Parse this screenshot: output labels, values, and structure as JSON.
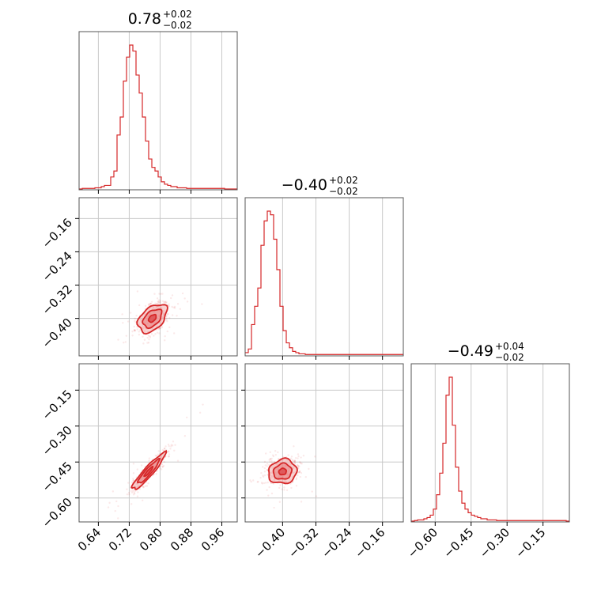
{
  "colors": {
    "series": "#d62728",
    "grid": "#c8c8c8",
    "frame": "#555555"
  },
  "chart_data": {
    "type": "corner",
    "parameters": [
      {
        "median": "0.78",
        "upper": "+0.02",
        "lower": "−0.02"
      },
      {
        "median": "−0.40",
        "upper": "+0.02",
        "lower": "−0.02"
      },
      {
        "median": "−0.49",
        "upper": "+0.04",
        "lower": "−0.02"
      }
    ],
    "ranges": [
      [
        0.59,
        1.0
      ],
      [
        -0.49,
        -0.11
      ],
      [
        -0.7,
        -0.04
      ]
    ],
    "ticks": [
      [
        0.64,
        0.72,
        0.8,
        0.88,
        0.96
      ],
      [
        -0.4,
        -0.32,
        -0.24,
        -0.16
      ],
      [
        -0.6,
        -0.45,
        -0.3,
        -0.15
      ]
    ],
    "tick_labels": [
      [
        "0.64",
        "0.72",
        "0.80",
        "0.88",
        "0.96"
      ],
      [
        "−0.40",
        "−0.32",
        "−0.24",
        "−0.16"
      ],
      [
        "−0.60",
        "−0.45",
        "−0.30",
        "−0.15"
      ]
    ],
    "grid": true,
    "histograms": [
      {
        "param": 0,
        "edges_start": 0.59,
        "bin": 0.0082,
        "counts": [
          0,
          0.5,
          0.5,
          0.5,
          0.5,
          1,
          1,
          2,
          3,
          3,
          10,
          15,
          45,
          60,
          90,
          110,
          120,
          115,
          95,
          80,
          60,
          40,
          25,
          18,
          15,
          10,
          6,
          4,
          3,
          2,
          2,
          1,
          1,
          1,
          0.5,
          0.5,
          0.5,
          0.5,
          0.5,
          0.5,
          0.5,
          0.5,
          0.5,
          0.5,
          0.5,
          0.5,
          0,
          0,
          0,
          0
        ]
      },
      {
        "param": 1,
        "edges_start": -0.49,
        "bin": 0.0076,
        "counts": [
          2,
          5,
          25,
          40,
          55,
          90,
          110,
          118,
          115,
          95,
          70,
          40,
          20,
          10,
          6,
          3,
          2,
          1,
          1,
          0.5,
          0.5,
          0.5,
          0.5,
          0.5,
          0.5,
          0.5,
          0.5,
          0.5,
          0.5,
          0.5,
          0.5,
          0.5,
          0.5,
          0.5,
          0.5,
          0.5,
          0.5,
          0.5,
          0.5,
          0.5,
          0.5,
          0.5,
          0.5,
          0.5,
          0.5,
          0.5,
          0.5,
          0.5,
          0.5,
          0.5
        ]
      },
      {
        "param": 2,
        "edges_start": -0.7,
        "bin": 0.0132,
        "counts": [
          0,
          0.5,
          1,
          1,
          2,
          3,
          5,
          10,
          22,
          40,
          65,
          105,
          120,
          80,
          45,
          25,
          15,
          10,
          7,
          5,
          4,
          3,
          2,
          2,
          1,
          1,
          1,
          0.5,
          0.5,
          0.5,
          0.5,
          0.5,
          0.5,
          0.5,
          0.5,
          0.5,
          0.5,
          0.5,
          0.5,
          0.5,
          0.5,
          0.5,
          0.5,
          0.5,
          0.5,
          0.5,
          0.5,
          0.5,
          0.5,
          0
        ]
      }
    ],
    "pairs": [
      {
        "x": 0,
        "y": 1,
        "center": [
          0.78,
          -0.4
        ],
        "sigma": [
          0.022,
          0.02
        ],
        "rho": 0.45,
        "npoints": 450
      },
      {
        "x": 0,
        "y": 2,
        "center": [
          0.77,
          -0.49
        ],
        "sigma": [
          0.025,
          0.045
        ],
        "rho": 0.93,
        "npoints": 450
      },
      {
        "x": 1,
        "y": 2,
        "center": [
          -0.4,
          -0.49
        ],
        "sigma": [
          0.02,
          0.03
        ],
        "rho": 0.1,
        "npoints": 450
      }
    ]
  }
}
